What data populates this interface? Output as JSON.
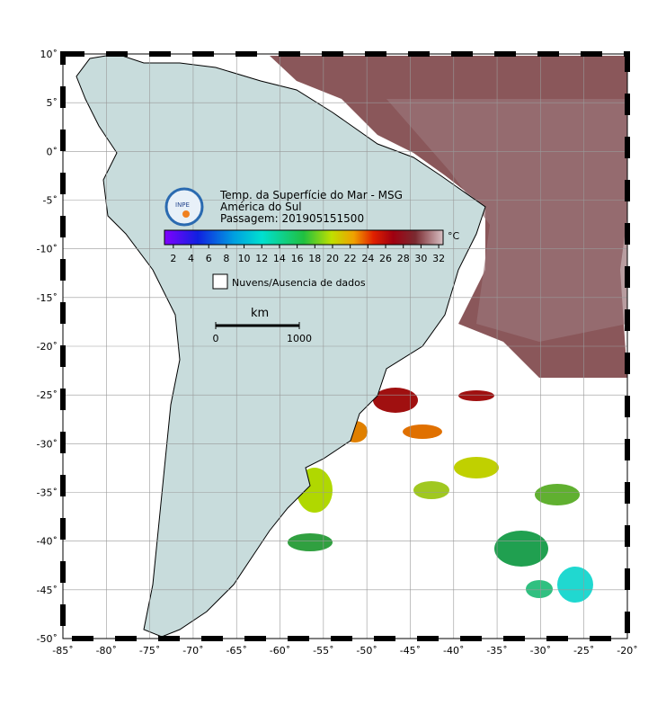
{
  "title_lines": [
    "Temp. da Superfície do Mar - MSG",
    "América do Sul",
    "Passagem: 201905151500"
  ],
  "logo": "INPE",
  "colorbar": {
    "unit": "°C",
    "range": [
      1,
      32.5
    ],
    "ticks": [
      2,
      4,
      6,
      8,
      10,
      12,
      14,
      16,
      18,
      20,
      22,
      24,
      26,
      28,
      30,
      32
    ]
  },
  "legend": {
    "no_data": "Nuvens/Ausencia de dados"
  },
  "scale": {
    "unit": "km",
    "ticks": [
      0,
      1000
    ]
  },
  "lat_ticks": [
    {
      "value": 10,
      "label": "10˚"
    },
    {
      "value": 5,
      "label": "5˚"
    },
    {
      "value": 0,
      "label": "0˚"
    },
    {
      "value": -5,
      "label": "-5˚"
    },
    {
      "value": -10,
      "label": "-10˚"
    },
    {
      "value": -15,
      "label": "-15˚"
    },
    {
      "value": -20,
      "label": "-20˚"
    },
    {
      "value": -25,
      "label": "-25˚"
    },
    {
      "value": -30,
      "label": "-30˚"
    },
    {
      "value": -35,
      "label": "-35˚"
    },
    {
      "value": -40,
      "label": "-40˚"
    },
    {
      "value": -45,
      "label": "-45˚"
    },
    {
      "value": -50,
      "label": "-50˚"
    }
  ],
  "lon_ticks": [
    {
      "value": -85,
      "label": "-85˚"
    },
    {
      "value": -80,
      "label": "-80˚"
    },
    {
      "value": -75,
      "label": "-75˚"
    },
    {
      "value": -70,
      "label": "-70˚"
    },
    {
      "value": -65,
      "label": "-65˚"
    },
    {
      "value": -60,
      "label": "-60˚"
    },
    {
      "value": -55,
      "label": "-55˚"
    },
    {
      "value": -50,
      "label": "-50˚"
    },
    {
      "value": -45,
      "label": "-45˚"
    },
    {
      "value": -40,
      "label": "-40˚"
    },
    {
      "value": -35,
      "label": "-35˚"
    },
    {
      "value": -30,
      "label": "-30˚"
    },
    {
      "value": -25,
      "label": "-25˚"
    },
    {
      "value": -20,
      "label": "-20˚"
    }
  ]
}
